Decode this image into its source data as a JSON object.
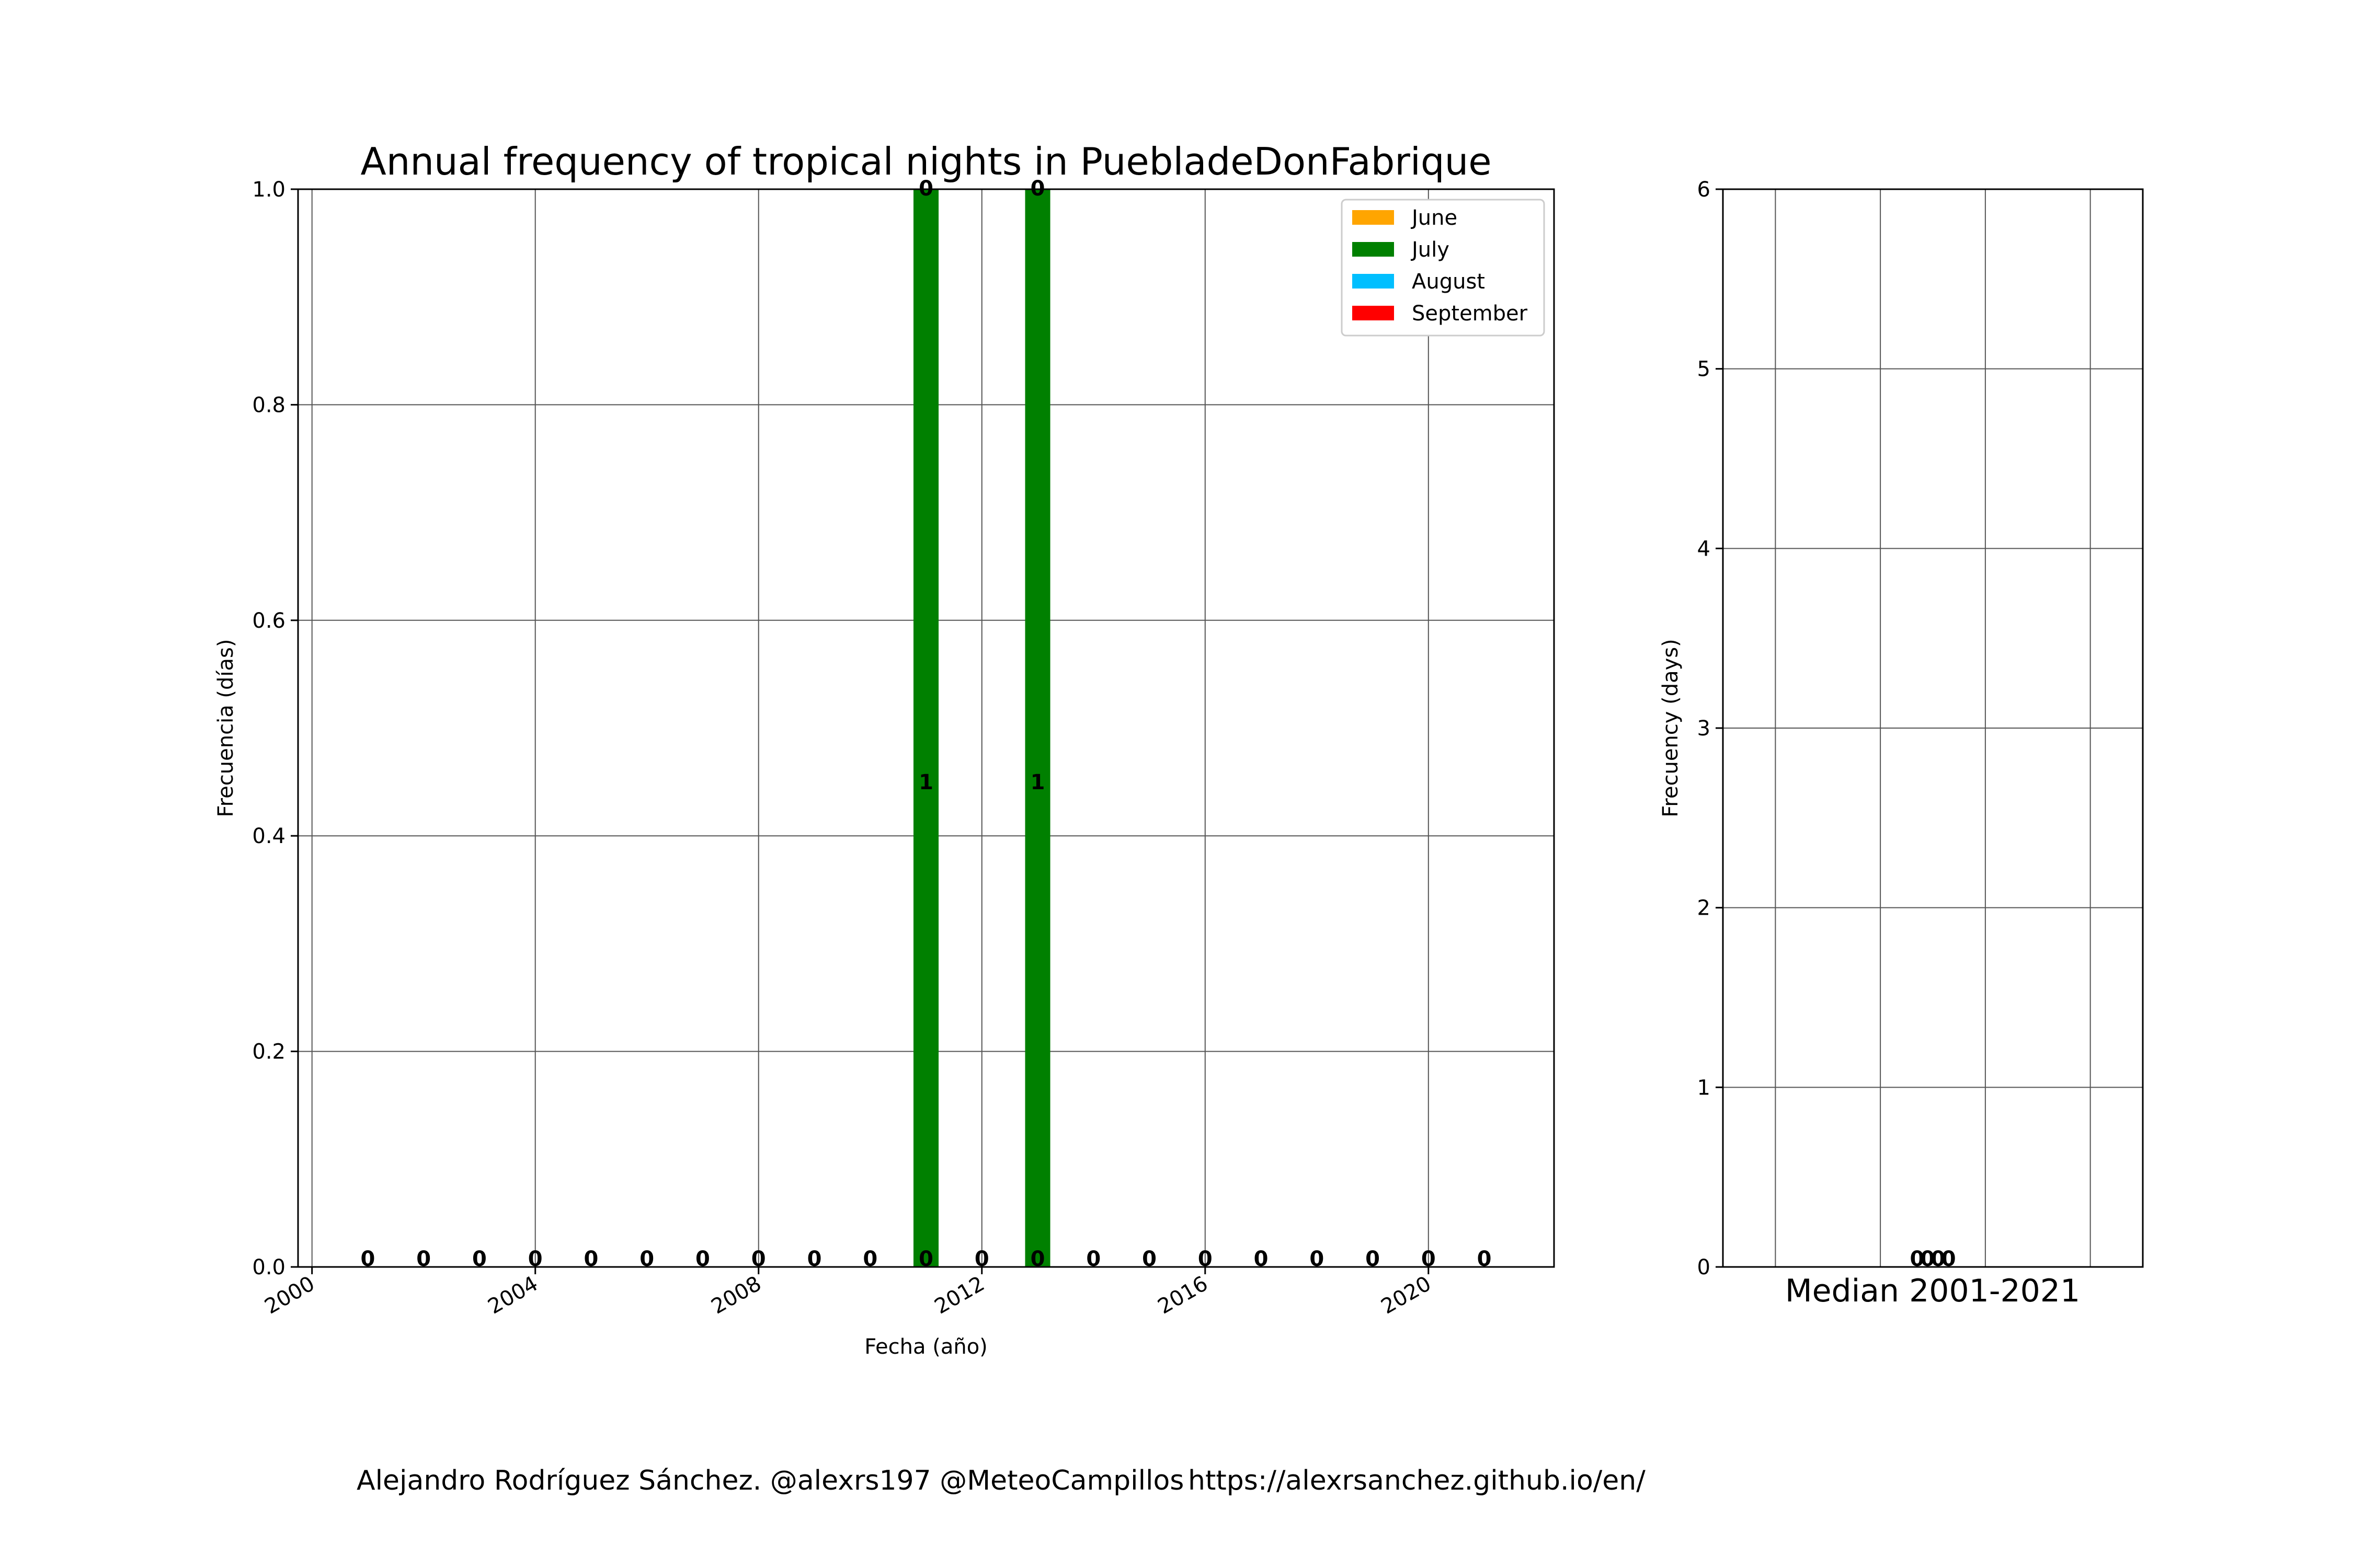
{
  "chart_data": [
    {
      "type": "bar",
      "stacked": true,
      "title": "Annual frequency of tropical nights in PuebladeDonFabrique",
      "xlabel": "Fecha (año)",
      "ylabel": "Frecuencia (días)",
      "xlim": [
        1999.75,
        2022.25
      ],
      "ylim": [
        0,
        1.0
      ],
      "xticks": [
        2000,
        2004,
        2008,
        2012,
        2016,
        2020
      ],
      "yticks": [
        "0.0",
        "0.2",
        "0.4",
        "0.6",
        "0.8",
        "1.0"
      ],
      "grid": true,
      "legend_position": "top-right",
      "x": [
        2001,
        2002,
        2003,
        2004,
        2005,
        2006,
        2007,
        2008,
        2009,
        2010,
        2011,
        2012,
        2013,
        2014,
        2015,
        2016,
        2017,
        2018,
        2019,
        2020,
        2021
      ],
      "series": [
        {
          "name": "June",
          "color": "#FFA500",
          "values": [
            0,
            0,
            0,
            0,
            0,
            0,
            0,
            0,
            0,
            0,
            0,
            0,
            0,
            0,
            0,
            0,
            0,
            0,
            0,
            0,
            0
          ]
        },
        {
          "name": "July",
          "color": "#008000",
          "values": [
            0,
            0,
            0,
            0,
            0,
            0,
            0,
            0,
            0,
            0,
            1,
            0,
            1,
            0,
            0,
            0,
            0,
            0,
            0,
            0,
            0
          ]
        },
        {
          "name": "August",
          "color": "#00BFFF",
          "values": [
            0,
            0,
            0,
            0,
            0,
            0,
            0,
            0,
            0,
            0,
            0,
            0,
            0,
            0,
            0,
            0,
            0,
            0,
            0,
            0,
            0
          ]
        },
        {
          "name": "September",
          "color": "#FF0000",
          "values": [
            0,
            0,
            0,
            0,
            0,
            0,
            0,
            0,
            0,
            0,
            0,
            0,
            0,
            0,
            0,
            0,
            0,
            0,
            0,
            0,
            0
          ]
        }
      ],
      "bar_labels": [
        {
          "x": 2001,
          "y": 0,
          "text": "0"
        },
        {
          "x": 2002,
          "y": 0,
          "text": "0"
        },
        {
          "x": 2003,
          "y": 0,
          "text": "0"
        },
        {
          "x": 2004,
          "y": 0,
          "text": "0"
        },
        {
          "x": 2005,
          "y": 0,
          "text": "0"
        },
        {
          "x": 2006,
          "y": 0,
          "text": "0"
        },
        {
          "x": 2007,
          "y": 0,
          "text": "0"
        },
        {
          "x": 2008,
          "y": 0,
          "text": "0"
        },
        {
          "x": 2009,
          "y": 0,
          "text": "0"
        },
        {
          "x": 2010,
          "y": 0,
          "text": "0"
        },
        {
          "x": 2011,
          "y": 0,
          "text": "0"
        },
        {
          "x": 2011,
          "y": 0.45,
          "text": "1"
        },
        {
          "x": 2011,
          "y": 1.0,
          "text": "0"
        },
        {
          "x": 2012,
          "y": 0,
          "text": "0"
        },
        {
          "x": 2013,
          "y": 0,
          "text": "0"
        },
        {
          "x": 2013,
          "y": 0.45,
          "text": "1"
        },
        {
          "x": 2013,
          "y": 1.0,
          "text": "0"
        },
        {
          "x": 2014,
          "y": 0,
          "text": "0"
        },
        {
          "x": 2015,
          "y": 0,
          "text": "0"
        },
        {
          "x": 2016,
          "y": 0,
          "text": "0"
        },
        {
          "x": 2017,
          "y": 0,
          "text": "0"
        },
        {
          "x": 2018,
          "y": 0,
          "text": "0"
        },
        {
          "x": 2019,
          "y": 0,
          "text": "0"
        },
        {
          "x": 2020,
          "y": 0,
          "text": "0"
        },
        {
          "x": 2021,
          "y": 0,
          "text": "0"
        }
      ]
    },
    {
      "type": "bar",
      "stacked": true,
      "title": "Median 2001-2021",
      "ylabel": "Frecuency (days)",
      "ylim": [
        0,
        6
      ],
      "yticks": [
        "0",
        "1",
        "2",
        "3",
        "4",
        "5",
        "6"
      ],
      "xlim": [
        -0.5,
        3.5
      ],
      "xgrid": [
        0,
        1,
        2,
        3
      ],
      "grid": true,
      "bar_labels": [
        {
          "x": 1.35,
          "y": 0,
          "text": "0"
        },
        {
          "x": 1.45,
          "y": 0,
          "text": "0"
        },
        {
          "x": 1.55,
          "y": 0,
          "text": "0"
        },
        {
          "x": 1.65,
          "y": 0,
          "text": "0"
        }
      ]
    }
  ],
  "footer": {
    "credit": "Alejandro Rodríguez Sánchez. @alexrs197 @MeteoCampillos",
    "url": "https://alexrsanchez.github.io/en/"
  }
}
